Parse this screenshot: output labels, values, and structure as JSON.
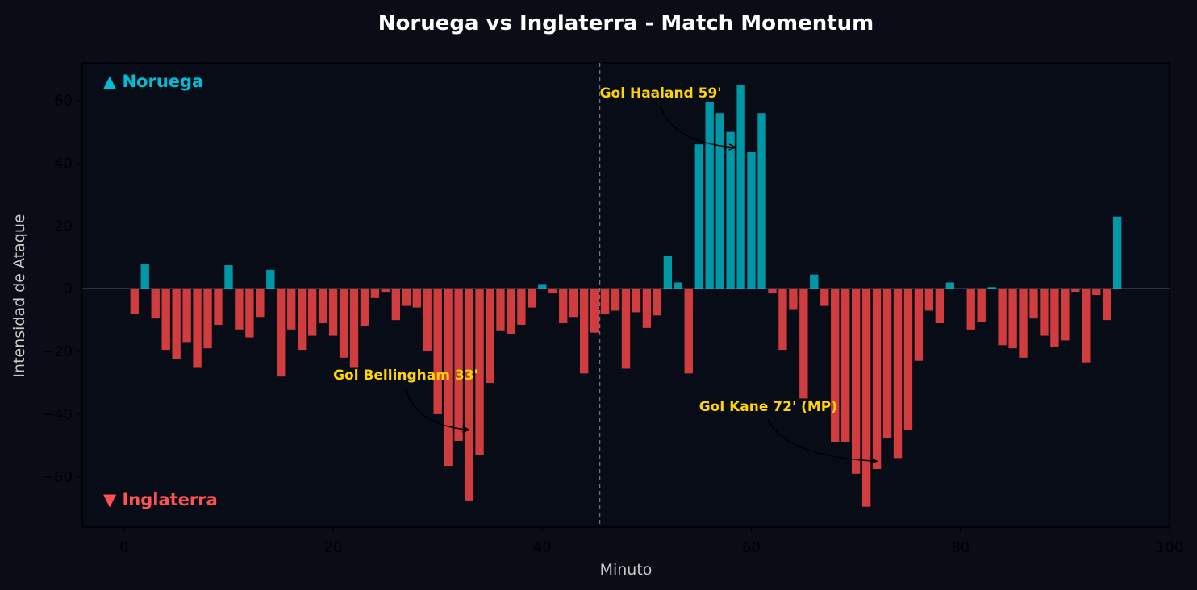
{
  "chart_data": {
    "type": "bar",
    "title": "Noruega vs Inglaterra - Match Momentum",
    "xlabel": "Minuto",
    "ylabel": "Intensidad de Ataque",
    "xlim": [
      -4,
      100
    ],
    "ylim": [
      -76,
      72
    ],
    "xticks": [
      0,
      20,
      40,
      60,
      80,
      100
    ],
    "yticks": [
      -60,
      -40,
      -20,
      0,
      20,
      40,
      60
    ],
    "xtick_labels": [
      "0",
      "20",
      "40",
      "60",
      "80",
      "100"
    ],
    "ytick_labels": [
      "−60",
      "−40",
      "−20",
      "0",
      "20",
      "40",
      "60"
    ],
    "halftime_line_x": 45.5,
    "legend": {
      "positive": "▲ Noruega",
      "negative": "▼ Inglaterra"
    },
    "colors": {
      "positive": "#0097a7",
      "negative": "#d13c3f",
      "background": "#070c17",
      "annotation": "#ffd400"
    },
    "minutes": [
      1,
      2,
      3,
      4,
      5,
      6,
      7,
      8,
      9,
      10,
      11,
      12,
      13,
      14,
      15,
      16,
      17,
      18,
      19,
      20,
      21,
      22,
      23,
      24,
      25,
      26,
      27,
      28,
      29,
      30,
      31,
      32,
      33,
      34,
      35,
      36,
      37,
      38,
      39,
      40,
      41,
      42,
      43,
      44,
      45,
      46,
      47,
      48,
      49,
      50,
      51,
      52,
      53,
      54,
      55,
      56,
      57,
      58,
      59,
      60,
      61,
      62,
      63,
      64,
      65,
      66,
      67,
      68,
      69,
      70,
      71,
      72,
      73,
      74,
      75,
      76,
      77,
      78,
      79,
      80,
      81,
      82,
      83,
      84,
      85,
      86,
      87,
      88,
      89,
      90,
      91,
      92,
      93,
      94,
      95
    ],
    "values": [
      -8,
      8,
      -9.5,
      -19.5,
      -22.5,
      -17,
      -25,
      -19,
      -11.5,
      7.5,
      -13,
      -15.5,
      -9,
      6,
      -28,
      -13,
      -19.5,
      -15,
      -11,
      -15,
      -22,
      -25,
      -12,
      -3,
      -1,
      -10,
      -5.5,
      -6,
      -20,
      -40,
      -56.5,
      -48.5,
      -67.5,
      -53,
      -30,
      -13.5,
      -14.5,
      -11.5,
      -6,
      1.5,
      -1.5,
      -11,
      -9,
      -27,
      -14,
      -8,
      -7,
      -25.5,
      -7.5,
      -12.5,
      -8.5,
      10.5,
      2,
      -27,
      46,
      59.5,
      56,
      50,
      65,
      43.5,
      56,
      -1.5,
      -19.5,
      -6.5,
      -35,
      4.5,
      -5.5,
      -49,
      -49,
      -59,
      -69.5,
      -57.5,
      -47.5,
      -54,
      -45,
      -23,
      -7,
      -11,
      2,
      0,
      -13,
      -10.5,
      0.5,
      -18,
      -19,
      -22,
      -9.5,
      -15,
      -18.5,
      -16.5,
      -1,
      -23.5,
      -2,
      -10,
      23
    ],
    "annotations": [
      {
        "text": "Gol Haaland 59'",
        "x": 58.5,
        "y": 45,
        "text_x": 45.5,
        "text_y": 61
      },
      {
        "text": "Gol Bellingham 33'",
        "x": 33,
        "y": -45,
        "text_x": 20,
        "text_y": -29
      },
      {
        "text": "Gol Kane 72' (MP)",
        "x": 72,
        "y": -55,
        "text_x": 55,
        "text_y": -39
      }
    ]
  }
}
